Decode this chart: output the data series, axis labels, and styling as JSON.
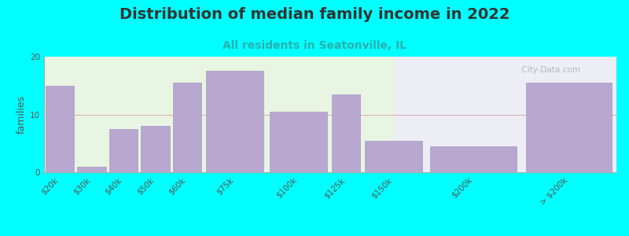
{
  "title": "Distribution of median family income in 2022",
  "subtitle": "All residents in Seatonville, IL",
  "ylabel": "families",
  "background_color": "#00ffff",
  "plot_bg_color_left": "#e8f5e2",
  "plot_bg_color_right": "#ededf5",
  "bar_color": "#b8a8d0",
  "bar_edge_color": "#a898c8",
  "watermark": " City-Data.com",
  "categories": [
    "$20k",
    "$30k",
    "$40k",
    "$50k",
    "$60k",
    "$75k",
    "$100k",
    "$125k",
    "$150k",
    "$200k",
    "> $200k"
  ],
  "values": [
    15,
    1,
    7.5,
    8,
    15.5,
    17.5,
    10.5,
    13.5,
    5.5,
    4.5,
    15.5
  ],
  "bar_positions": [
    0,
    1,
    2,
    3,
    4,
    5,
    7,
    9,
    10,
    12,
    15
  ],
  "bar_widths": [
    1,
    1,
    1,
    1,
    1,
    2,
    2,
    1,
    2,
    3,
    3
  ],
  "ylim": [
    0,
    20
  ],
  "yticks": [
    0,
    10,
    20
  ],
  "title_fontsize": 14,
  "subtitle_fontsize": 10,
  "ylabel_fontsize": 9,
  "tick_fontsize": 7.5,
  "subtitle_color": "#2ab0b0"
}
